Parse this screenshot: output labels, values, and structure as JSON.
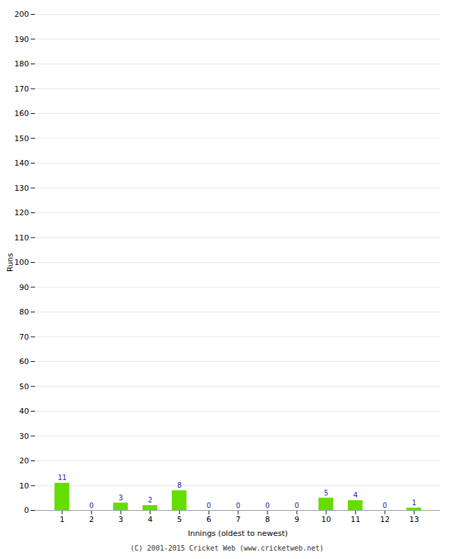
{
  "chart_data": {
    "type": "bar",
    "categories": [
      "1",
      "2",
      "3",
      "4",
      "5",
      "6",
      "7",
      "8",
      "9",
      "10",
      "11",
      "12",
      "13"
    ],
    "values": [
      11,
      0,
      3,
      2,
      8,
      0,
      0,
      0,
      0,
      5,
      4,
      0,
      1
    ],
    "color": "#66dd00",
    "xlabel": "Innings (oldest to newest)",
    "ylabel": "Runs",
    "ylim": [
      0,
      200
    ],
    "yticks": [
      0,
      10,
      20,
      30,
      40,
      50,
      60,
      70,
      80,
      90,
      100,
      110,
      120,
      130,
      140,
      150,
      160,
      170,
      180,
      190,
      200
    ],
    "grid": true,
    "data_labels": true,
    "caption": "(C) 2001-2015 Cricket Web (www.cricketweb.net)"
  }
}
